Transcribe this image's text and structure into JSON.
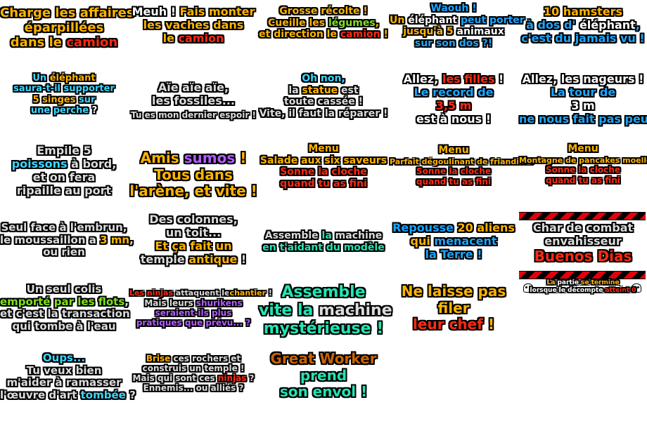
{
  "palette": {
    "white": "#ffffff",
    "orange": "#ffb400",
    "red": "#ff2a12",
    "blue": "#1aa6ff",
    "cyan": "#3cd6ff",
    "green": "#7ee21c",
    "yellow": "#ffe800",
    "purple": "#b45cff",
    "teal": "#21e6b4",
    "pink": "#ff5db4",
    "grey": "#dcdcdc",
    "brown": "#c86400"
  },
  "captions": [
    {
      "name": "caption-charge-affaires",
      "size": "s18",
      "lines": [
        [
          {
            "t": "Charge les affaires",
            "c": "orange"
          }
        ],
        [
          {
            "t": "éparpillées",
            "c": "orange"
          }
        ],
        [
          {
            "t": "dans le ",
            "c": "orange"
          },
          {
            "t": "camion",
            "c": "red"
          }
        ]
      ]
    },
    {
      "name": "caption-meuh-vaches",
      "size": "s16",
      "lines": [
        [
          {
            "t": "Meuh ! ",
            "c": "white"
          },
          {
            "t": "Fais monter",
            "c": "orange"
          }
        ],
        [
          {
            "t": "les vaches dans",
            "c": "orange"
          }
        ],
        [
          {
            "t": "le ",
            "c": "orange"
          },
          {
            "t": "camion",
            "c": "red"
          }
        ]
      ]
    },
    {
      "name": "caption-grosse-recolte",
      "size": "s14",
      "lines": [
        [
          {
            "t": "Grosse récolte !",
            "c": "orange"
          }
        ],
        [
          {
            "t": "Cueille les ",
            "c": "orange"
          },
          {
            "t": "légumes",
            "c": "green"
          },
          {
            "t": ",",
            "c": "orange"
          }
        ],
        [
          {
            "t": "et direction le ",
            "c": "orange"
          },
          {
            "t": "camion",
            "c": "red"
          },
          {
            "t": " !",
            "c": "orange"
          }
        ]
      ]
    },
    {
      "name": "caption-waouh-elephant",
      "size": "s14",
      "lines": [
        [
          {
            "t": "Waouh !",
            "c": "blue"
          }
        ],
        [
          {
            "t": "Un ",
            "c": "orange"
          },
          {
            "t": "éléphant",
            "c": "white"
          },
          {
            "t": " peut porter",
            "c": "blue"
          }
        ],
        [
          {
            "t": "jusqu'à 5 ",
            "c": "orange"
          },
          {
            "t": "animaux",
            "c": "white"
          }
        ],
        [
          {
            "t": "sur son dos ?!",
            "c": "blue"
          }
        ]
      ]
    },
    {
      "name": "caption-10-hamsters",
      "size": "s16",
      "lines": [
        [
          {
            "t": "10 ",
            "c": "orange"
          },
          {
            "t": "hamsters",
            "c": "orange"
          }
        ],
        [
          {
            "t": "à dos d' ",
            "c": "blue"
          },
          {
            "t": "éléphant",
            "c": "white"
          },
          {
            "t": ",",
            "c": "blue"
          }
        ],
        [
          {
            "t": "c'est du jamais vu !",
            "c": "blue"
          }
        ]
      ]
    },
    {
      "name": "caption-elephant-singes",
      "size": "s13",
      "lines": [
        [
          {
            "t": "Un ",
            "c": "cyan"
          },
          {
            "t": "éléphant",
            "c": "orange"
          }
        ],
        [
          {
            "t": "saura-t-il supporter",
            "c": "cyan"
          }
        ],
        [
          {
            "t": "5 ",
            "c": "orange"
          },
          {
            "t": "singes",
            "c": "orange"
          },
          {
            "t": " sur",
            "c": "cyan"
          }
        ],
        [
          {
            "t": "une perche",
            "c": "cyan"
          },
          {
            "t": " ?",
            "c": "white"
          }
        ]
      ]
    },
    {
      "name": "caption-aie-fossiles",
      "size": "s16",
      "lines": [
        [
          {
            "t": "Aïe aïe aïe,",
            "c": "grey"
          }
        ],
        [
          {
            "t": "les fossiles...",
            "c": "grey"
          }
        ],
        [
          {
            "t": "Tu es mon dernier espoir !",
            "c": "grey",
            "size": "s12"
          }
        ]
      ]
    },
    {
      "name": "caption-oh-non-statue",
      "size": "s14",
      "lines": [
        [
          {
            "t": "Oh non,",
            "c": "cyan"
          }
        ],
        [
          {
            "t": "la ",
            "c": "grey"
          },
          {
            "t": "statue",
            "c": "orange"
          },
          {
            "t": " est",
            "c": "grey"
          }
        ],
        [
          {
            "t": "toute cassée !",
            "c": "grey"
          }
        ],
        [
          {
            "t": "Vite, il faut la réparer !",
            "c": "grey"
          }
        ]
      ]
    },
    {
      "name": "caption-allez-filles",
      "size": "s16",
      "lines": [
        [
          {
            "t": "Allez, ",
            "c": "white"
          },
          {
            "t": "les filles",
            "c": "red"
          },
          {
            "t": " !",
            "c": "white"
          }
        ],
        [
          {
            "t": "Le record de",
            "c": "blue"
          }
        ],
        [
          {
            "t": "3,5 m",
            "c": "red"
          }
        ],
        [
          {
            "t": "est à nous !",
            "c": "white"
          }
        ]
      ]
    },
    {
      "name": "caption-allez-nageurs",
      "size": "s16",
      "lines": [
        [
          {
            "t": "Allez, les nageurs !",
            "c": "white"
          }
        ],
        [
          {
            "t": "La tour de",
            "c": "blue"
          }
        ],
        [
          {
            "t": "3 m",
            "c": "white"
          }
        ],
        [
          {
            "t": "ne nous fait pas peur !",
            "c": "blue"
          }
        ]
      ]
    },
    {
      "name": "caption-empile-poissons",
      "size": "s16",
      "lines": [
        [
          {
            "t": "Empile 5",
            "c": "grey"
          }
        ],
        [
          {
            "t": "poissons",
            "c": "cyan"
          },
          {
            "t": " à bord,",
            "c": "grey"
          }
        ],
        [
          {
            "t": "et on fera",
            "c": "grey"
          }
        ],
        [
          {
            "t": "ripaille au port",
            "c": "grey"
          }
        ]
      ]
    },
    {
      "name": "caption-amis-sumos",
      "size": "s20",
      "lines": [
        [
          {
            "t": "Amis ",
            "c": "orange"
          },
          {
            "t": "sumos",
            "c": "purple"
          },
          {
            "t": " !",
            "c": "orange"
          }
        ],
        [
          {
            "t": "Tous dans",
            "c": "orange"
          }
        ],
        [
          {
            "t": "l'arène, et vite !",
            "c": "orange"
          }
        ]
      ]
    },
    {
      "name": "caption-menu-salade",
      "size": "s14",
      "lines": [
        [
          {
            "t": "Menu",
            "c": "orange"
          }
        ],
        [
          {
            "t": "Salade aux six saveurs",
            "c": "orange"
          }
        ],
        [
          {
            "t": "Sonne la cloche",
            "c": "red"
          }
        ],
        [
          {
            "t": "quand tu as fini",
            "c": "red"
          }
        ]
      ]
    },
    {
      "name": "caption-menu-parfait",
      "size": "s12",
      "lines": [
        [
          {
            "t": "Menu",
            "c": "orange",
            "size": "s14"
          }
        ],
        [
          {
            "t": "Parfait dégoulinant de friandises",
            "c": "orange",
            "size": "s11"
          }
        ],
        [
          {
            "t": "Sonne la cloche",
            "c": "red"
          }
        ],
        [
          {
            "t": "quand tu as fini",
            "c": "red"
          }
        ]
      ]
    },
    {
      "name": "caption-menu-pancakes",
      "size": "s12",
      "lines": [
        [
          {
            "t": "Menu",
            "c": "orange",
            "size": "s14"
          }
        ],
        [
          {
            "t": "Montagne de pancakes moelleux",
            "c": "orange",
            "size": "s11"
          }
        ],
        [
          {
            "t": "Sonne la cloche",
            "c": "red"
          }
        ],
        [
          {
            "t": "quand tu as fini",
            "c": "red"
          }
        ]
      ]
    },
    {
      "name": "caption-seul-embrun",
      "size": "s15",
      "lines": [
        [
          {
            "t": "Seul face à l'embrun,",
            "c": "grey"
          }
        ],
        [
          {
            "t": "le moussaillon a ",
            "c": "grey"
          },
          {
            "t": "3 mn",
            "c": "orange"
          },
          {
            "t": ",",
            "c": "grey"
          }
        ],
        [
          {
            "t": "ou rien",
            "c": "grey"
          }
        ]
      ]
    },
    {
      "name": "caption-colonnes-temple",
      "size": "s16",
      "lines": [
        [
          {
            "t": "Des colonnes,",
            "c": "grey"
          }
        ],
        [
          {
            "t": "un toit...",
            "c": "grey"
          }
        ],
        [
          {
            "t": "Et ça fait un",
            "c": "orange"
          }
        ],
        [
          {
            "t": "temple ",
            "c": "grey"
          },
          {
            "t": "antique",
            "c": "orange"
          },
          {
            "t": " !",
            "c": "grey"
          }
        ]
      ]
    },
    {
      "name": "caption-assemble-machine",
      "size": "s14",
      "lines": [
        [
          {
            "t": "Assemble ",
            "c": "grey"
          },
          {
            "t": "la ",
            "c": "teal"
          },
          {
            "t": "machine",
            "c": "grey"
          }
        ],
        [
          {
            "t": "en t'aidant du modèle",
            "c": "teal"
          }
        ]
      ]
    },
    {
      "name": "caption-repousse-aliens",
      "size": "s16",
      "lines": [
        [
          {
            "t": "Repousse ",
            "c": "blue"
          },
          {
            "t": "20 aliens",
            "c": "orange"
          }
        ],
        [
          {
            "t": "qui ",
            "c": "orange"
          },
          {
            "t": "menacent",
            "c": "blue"
          }
        ],
        [
          {
            "t": "la Terre !",
            "c": "blue"
          }
        ]
      ]
    },
    {
      "name": "caption-char-combat",
      "size": "s16",
      "lines": [
        [
          {
            "t": "Char de combat",
            "c": "grey"
          }
        ],
        [
          {
            "t": "envahisseur",
            "c": "grey"
          }
        ],
        [
          {
            "t": "Buenos Dias",
            "c": "red",
            "size": "s20"
          }
        ]
      ]
    },
    {
      "name": "caption-partie-termine",
      "size": "s9",
      "lines": [
        [
          {
            "t": "La ",
            "c": "orange"
          },
          {
            "t": "partie",
            "c": "white"
          },
          {
            "t": " se termine",
            "c": "orange"
          }
        ],
        [
          {
            "t": "lorsque le décompte ",
            "c": "white"
          },
          {
            "t": "atteint 0",
            "c": "red"
          }
        ]
      ]
    },
    {
      "name": "caption-seul-colis",
      "size": "s15",
      "lines": [
        [
          {
            "t": "Un seul colis",
            "c": "grey"
          }
        ],
        [
          {
            "t": "emporté par les flots",
            "c": "green"
          },
          {
            "t": ",",
            "c": "grey"
          }
        ],
        [
          {
            "t": "et c'est la transaction",
            "c": "grey"
          }
        ],
        [
          {
            "t": "qui tombe à l'eau",
            "c": "grey"
          }
        ]
      ]
    },
    {
      "name": "caption-ninjas-chantier",
      "size": "s12",
      "lines": [
        [
          {
            "t": "Les ninjas",
            "c": "red",
            "size": "s11"
          },
          {
            "t": " attaquent le",
            "c": "grey",
            "size": "s11"
          },
          {
            "t": "chantier",
            "c": "orange",
            "size": "s11"
          },
          {
            "t": " !",
            "c": "grey",
            "size": "s11"
          }
        ],
        [
          {
            "t": "Mais leurs ",
            "c": "grey"
          },
          {
            "t": "shurikens",
            "c": "purple"
          }
        ],
        [
          {
            "t": "seraient-ils plus",
            "c": "purple"
          }
        ],
        [
          {
            "t": "pratiques que prévu... ?",
            "c": "purple"
          }
        ]
      ]
    },
    {
      "name": "caption-assemble-vite",
      "size": "s22",
      "lines": [
        [
          {
            "t": "Assemble",
            "c": "teal"
          }
        ],
        [
          {
            "t": "vite la ",
            "c": "teal"
          },
          {
            "t": "machine",
            "c": "grey"
          }
        ],
        [
          {
            "t": "mystérieuse !",
            "c": "teal"
          }
        ]
      ]
    },
    {
      "name": "caption-ne-laisse-pas",
      "size": "s20",
      "lines": [
        [
          {
            "t": "Ne laisse pas",
            "c": "orange"
          }
        ],
        [
          {
            "t": "filer",
            "c": "orange"
          }
        ],
        [
          {
            "t": "leur chef",
            "c": "red"
          },
          {
            "t": " !",
            "c": "orange"
          }
        ]
      ]
    },
    {
      "name": "caption-oups-oeuvre",
      "size": "s15",
      "lines": [
        [
          {
            "t": "Oups...",
            "c": "cyan"
          }
        ],
        [
          {
            "t": "Tu veux bien",
            "c": "grey"
          }
        ],
        [
          {
            "t": "m'aider à ramasser",
            "c": "grey"
          }
        ],
        [
          {
            "t": "l'œuvre d'art ",
            "c": "grey"
          },
          {
            "t": "tombée",
            "c": "cyan"
          },
          {
            "t": " ?",
            "c": "grey"
          }
        ]
      ]
    },
    {
      "name": "caption-brise-rochers",
      "size": "s12",
      "lines": [
        [
          {
            "t": "Brise",
            "c": "orange"
          },
          {
            "t": " ces rochers et",
            "c": "grey"
          }
        ],
        [
          {
            "t": "construis un temple !",
            "c": "grey"
          }
        ],
        [
          {
            "t": "Mais qui sont ces ",
            "c": "grey"
          },
          {
            "t": "ninjas",
            "c": "red"
          },
          {
            "t": " ?",
            "c": "grey"
          }
        ],
        [
          {
            "t": "Ennemis... ou alliés ?",
            "c": "grey"
          }
        ]
      ]
    },
    {
      "name": "caption-great-worker",
      "size": "s20",
      "lines": [
        [
          {
            "t": "Great Worker",
            "c": "brown"
          }
        ],
        [
          {
            "t": "prend",
            "c": "teal"
          }
        ],
        [
          {
            "t": "son envol !",
            "c": "teal"
          }
        ]
      ]
    }
  ]
}
